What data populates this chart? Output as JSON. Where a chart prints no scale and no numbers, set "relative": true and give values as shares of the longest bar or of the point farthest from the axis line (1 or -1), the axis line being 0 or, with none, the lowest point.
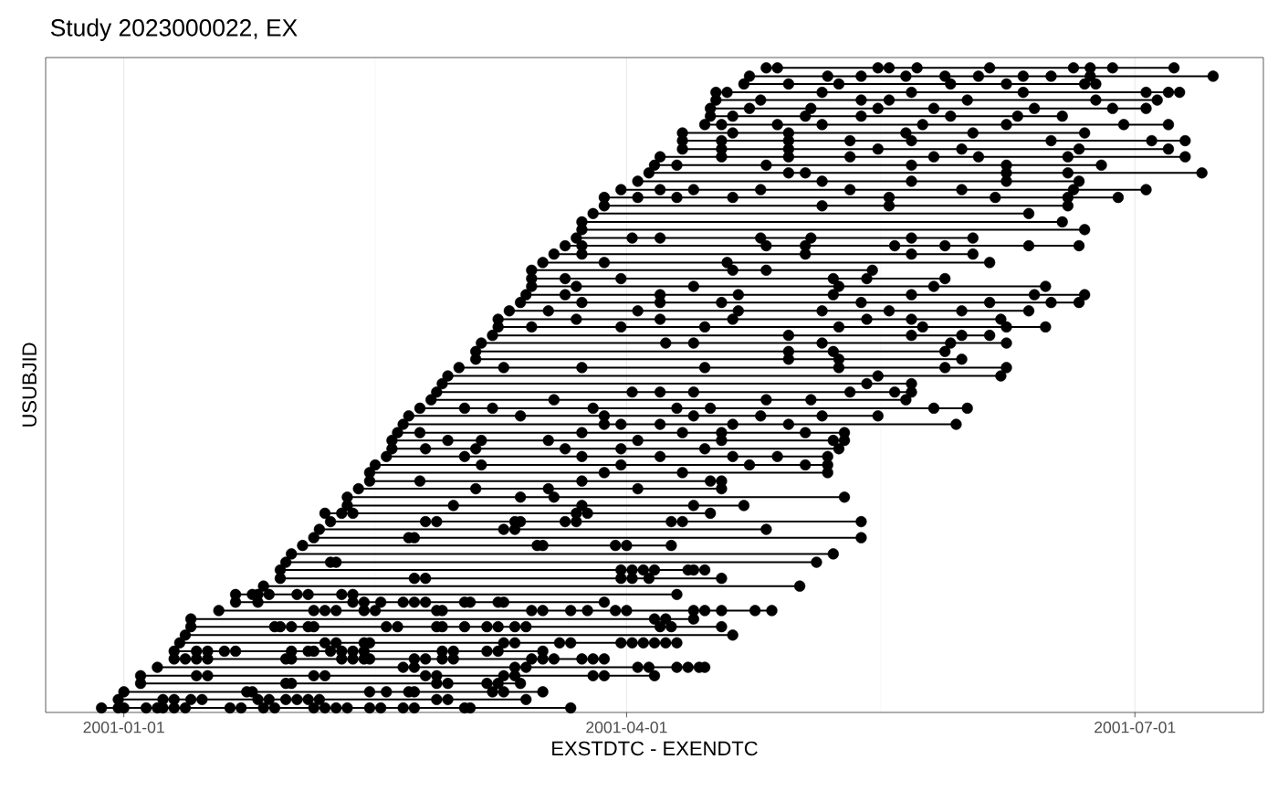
{
  "chart_data": {
    "type": "line",
    "relative": true,
    "marker": "circle",
    "title": "Study 2023000022, EX",
    "xlabel": "EXSTDTC - EXENDTC",
    "ylabel": "USUBJID",
    "tick_labels": "x",
    "grid": "x",
    "xlim": [
      "2000-12-18",
      "2001-07-24"
    ],
    "xticks": [
      {
        "value": "2001-01-01",
        "label": "2001-01-01"
      },
      {
        "value": "2001-04-01",
        "label": "2001-04-01"
      },
      {
        "value": "2001-07-01",
        "label": "2001-07-01"
      }
    ],
    "series": [
      {
        "color": "#000000",
        "x": [
          "2001-04-26",
          "2001-04-28",
          "2001-05-16",
          "2001-05-18",
          "2001-05-23",
          "2001-06-05",
          "2001-06-20",
          "2001-06-23",
          "2001-06-27",
          "2001-07-08",
          null,
          "2001-04-23",
          "2001-05-07",
          "2001-05-13",
          "2001-05-21",
          "2001-05-28",
          "2001-06-03",
          "2001-06-11",
          "2001-06-16",
          "2001-06-23",
          "2001-07-15",
          null,
          "2001-04-22",
          "2001-04-30",
          "2001-05-09",
          "2001-05-29",
          "2001-06-08",
          "2001-06-22",
          "2001-06-24",
          null,
          "2001-04-17",
          "2001-04-19",
          "2001-05-06",
          "2001-05-22",
          "2001-06-11",
          "2001-07-03",
          "2001-07-07",
          "2001-07-09",
          null,
          "2001-04-17",
          "2001-04-25",
          "2001-05-13",
          "2001-05-18",
          "2001-06-01",
          "2001-06-24",
          "2001-07-05",
          null,
          "2001-04-16",
          "2001-04-23",
          "2001-05-04",
          "2001-05-16",
          "2001-05-26",
          "2001-06-13",
          "2001-06-27",
          "2001-07-03",
          null,
          "2001-04-16",
          "2001-04-20",
          "2001-05-03",
          "2001-05-13",
          "2001-05-29",
          "2001-06-10",
          "2001-06-18",
          null,
          "2001-04-15",
          "2001-04-18",
          "2001-04-28",
          "2001-05-06",
          "2001-05-24",
          "2001-06-08",
          "2001-06-29",
          "2001-07-07",
          null,
          "2001-04-11",
          "2001-04-20",
          "2001-04-30",
          "2001-05-21",
          "2001-06-02",
          "2001-06-22",
          null,
          "2001-04-11",
          "2001-04-18",
          "2001-04-30",
          "2001-05-11",
          "2001-05-22",
          "2001-06-16",
          "2001-07-04",
          "2001-07-10",
          null,
          "2001-04-11",
          "2001-04-18",
          "2001-04-30",
          "2001-05-16",
          "2001-05-31",
          "2001-06-21",
          "2001-07-07",
          null,
          "2001-04-07",
          "2001-04-18",
          "2001-04-30",
          "2001-05-11",
          "2001-05-26",
          "2001-06-03",
          "2001-06-19",
          "2001-07-10",
          null,
          "2001-04-06",
          "2001-04-10",
          "2001-04-26",
          "2001-05-22",
          "2001-06-08",
          "2001-06-25",
          null,
          "2001-04-05",
          "2001-04-30",
          "2001-05-03",
          "2001-06-08",
          "2001-06-19",
          "2001-07-13",
          null,
          "2001-04-03",
          "2001-05-06",
          "2001-05-22",
          "2001-06-08",
          "2001-06-21",
          null,
          "2001-03-31",
          "2001-04-07",
          "2001-04-13",
          "2001-04-25",
          "2001-05-11",
          "2001-05-31",
          "2001-06-20",
          "2001-07-03",
          null,
          "2001-03-28",
          "2001-04-03",
          "2001-04-10",
          "2001-04-20",
          "2001-05-18",
          "2001-06-06",
          "2001-06-19",
          "2001-06-28",
          null,
          "2001-03-28",
          "2001-05-06",
          "2001-05-18",
          "2001-06-19",
          null,
          "2001-03-26",
          "2001-06-12",
          null,
          "2001-03-24",
          "2001-06-18",
          null,
          "2001-03-24",
          "2001-06-22",
          null,
          "2001-03-23",
          "2001-04-02",
          "2001-04-07",
          "2001-04-25",
          "2001-05-04",
          "2001-05-22",
          "2001-06-02",
          null,
          "2001-03-21",
          "2001-03-24",
          "2001-04-26",
          "2001-05-03",
          "2001-05-19",
          "2001-05-28",
          "2001-06-12",
          "2001-06-21",
          null,
          "2001-03-19",
          "2001-03-24",
          "2001-05-03",
          "2001-05-22",
          "2001-06-02",
          null,
          "2001-03-17",
          "2001-03-28",
          "2001-04-19",
          "2001-06-05",
          null,
          "2001-03-15",
          "2001-04-20",
          "2001-04-26",
          "2001-05-15",
          null,
          "2001-03-15",
          "2001-03-21",
          "2001-03-31",
          "2001-05-08",
          "2001-05-14",
          "2001-05-28",
          null,
          "2001-03-15",
          "2001-03-23",
          "2001-04-13",
          "2001-05-09",
          "2001-05-26",
          "2001-06-15",
          null,
          "2001-03-14",
          "2001-03-21",
          "2001-04-07",
          "2001-04-21",
          "2001-05-08",
          "2001-05-22",
          "2001-06-13",
          "2001-06-22",
          null,
          "2001-03-13",
          "2001-03-24",
          "2001-04-07",
          "2001-04-18",
          "2001-05-13",
          "2001-06-05",
          "2001-06-16",
          "2001-06-21",
          null,
          "2001-03-11",
          "2001-03-18",
          "2001-04-03",
          "2001-04-21",
          "2001-05-06",
          "2001-05-18",
          "2001-05-31",
          "2001-06-12",
          null,
          "2001-03-09",
          "2001-03-23",
          "2001-04-07",
          "2001-04-20",
          "2001-05-14",
          "2001-05-22",
          "2001-06-07",
          null,
          "2001-03-09",
          "2001-03-15",
          "2001-03-31",
          "2001-04-15",
          "2001-05-09",
          "2001-05-24",
          "2001-06-08",
          "2001-06-15",
          null,
          "2001-03-08",
          "2001-04-30",
          "2001-05-22",
          "2001-05-31",
          "2001-06-05",
          null,
          "2001-03-06",
          "2001-04-08",
          "2001-04-13",
          "2001-05-06",
          "2001-05-29",
          "2001-06-08",
          null,
          "2001-03-05",
          "2001-04-30",
          "2001-05-08",
          "2001-05-28",
          null,
          "2001-03-05",
          "2001-04-30",
          "2001-05-09",
          "2001-05-31",
          null,
          "2001-03-02",
          "2001-03-10",
          "2001-03-24",
          "2001-04-15",
          "2001-05-09",
          "2001-05-28",
          "2001-06-08",
          null,
          "2001-02-28",
          "2001-05-16",
          "2001-06-07",
          null,
          "2001-02-27",
          "2001-05-14",
          "2001-05-22",
          null,
          "2001-02-26",
          "2001-04-02",
          "2001-04-07",
          "2001-04-13",
          "2001-05-11",
          "2001-05-19",
          "2001-05-22",
          null,
          "2001-02-25",
          "2001-03-19",
          "2001-04-26",
          "2001-05-04",
          "2001-05-21",
          null,
          "2001-02-23",
          "2001-03-03",
          "2001-03-08",
          "2001-03-26",
          "2001-04-10",
          "2001-04-16",
          "2001-05-26",
          "2001-06-01",
          null,
          "2001-02-21",
          "2001-03-13",
          "2001-03-28",
          "2001-04-13",
          "2001-04-25",
          "2001-05-06",
          "2001-05-16",
          null,
          "2001-02-20",
          "2001-03-28",
          "2001-03-31",
          "2001-04-07",
          "2001-04-20",
          "2001-04-30",
          "2001-05-30",
          null,
          "2001-02-19",
          "2001-02-23",
          "2001-03-24",
          "2001-04-11",
          "2001-04-18",
          "2001-05-03",
          "2001-05-10",
          null,
          "2001-02-18",
          "2001-02-28",
          "2001-03-06",
          "2001-03-18",
          "2001-04-03",
          "2001-04-18",
          "2001-05-08",
          "2001-05-10",
          null,
          "2001-02-18",
          "2001-02-24",
          "2001-03-05",
          "2001-03-21",
          "2001-03-31",
          "2001-04-15",
          "2001-05-09",
          null,
          "2001-02-17",
          "2001-03-03",
          "2001-03-24",
          "2001-04-07",
          "2001-04-20",
          "2001-04-28",
          "2001-05-07",
          null,
          "2001-02-15",
          "2001-03-06",
          "2001-03-31",
          "2001-04-23",
          "2001-05-03",
          "2001-05-07",
          null,
          "2001-02-14",
          "2001-03-28",
          "2001-04-11",
          "2001-05-07",
          null,
          "2001-02-14",
          "2001-02-23",
          "2001-03-24",
          "2001-04-16",
          "2001-04-18",
          null,
          "2001-02-12",
          "2001-03-05",
          "2001-03-18",
          "2001-04-03",
          "2001-04-18",
          null,
          "2001-02-10",
          "2001-03-13",
          "2001-03-19",
          "2001-05-10",
          null,
          "2001-02-10",
          "2001-03-01",
          "2001-03-24",
          "2001-04-13",
          "2001-04-22",
          null,
          "2001-02-06",
          "2001-02-09",
          "2001-02-11",
          "2001-03-23",
          "2001-03-25",
          "2001-04-16",
          null,
          "2001-02-07",
          "2001-02-24",
          "2001-02-26",
          "2001-03-12",
          "2001-03-13",
          "2001-03-21",
          "2001-03-23",
          "2001-04-09",
          "2001-04-11",
          "2001-05-13",
          null,
          "2001-02-05",
          "2001-03-10",
          "2001-03-12",
          "2001-04-26",
          null,
          "2001-02-04",
          "2001-02-21",
          "2001-02-22",
          "2001-05-13",
          null,
          "2001-02-02",
          "2001-03-16",
          "2001-03-17",
          "2001-03-30",
          "2001-04-01",
          "2001-04-09",
          null,
          "2001-01-31",
          "2001-05-08",
          null,
          "2001-01-30",
          "2001-02-07",
          "2001-02-08",
          "2001-05-05",
          null,
          "2001-01-29",
          "2001-03-31",
          "2001-04-02",
          "2001-04-04",
          "2001-04-06",
          "2001-04-12",
          "2001-04-13",
          "2001-04-15",
          null,
          "2001-01-29",
          "2001-02-22",
          "2001-02-24",
          "2001-03-31",
          "2001-04-02",
          "2001-04-05",
          "2001-04-18",
          null,
          "2001-01-26",
          "2001-05-02",
          null,
          "2001-01-21",
          "2001-01-24",
          "2001-01-25",
          "2001-01-27",
          "2001-02-01",
          "2001-02-03",
          "2001-02-09",
          "2001-02-11",
          "2001-04-10",
          null,
          "2001-01-21",
          "2001-01-25",
          "2001-02-11",
          "2001-02-13",
          "2001-02-16",
          "2001-02-20",
          "2001-02-22",
          "2001-02-24",
          "2001-03-03",
          "2001-03-04",
          "2001-03-09",
          "2001-03-10",
          "2001-03-28",
          null,
          "2001-01-18",
          "2001-02-04",
          "2001-02-06",
          "2001-02-08",
          "2001-02-13",
          "2001-02-15",
          "2001-02-26",
          "2001-02-27",
          "2001-03-15",
          "2001-03-17",
          "2001-03-22",
          "2001-03-25",
          "2001-03-30",
          "2001-04-01",
          "2001-04-13",
          "2001-04-15",
          "2001-04-18",
          "2001-04-24",
          "2001-04-27",
          null,
          "2001-01-13",
          "2001-04-06",
          "2001-04-08",
          "2001-04-13",
          null,
          "2001-01-13",
          "2001-01-28",
          "2001-01-29",
          "2001-01-31",
          "2001-02-03",
          "2001-02-04",
          "2001-02-17",
          "2001-02-19",
          "2001-02-26",
          "2001-02-27",
          "2001-03-03",
          "2001-03-07",
          "2001-03-09",
          "2001-03-12",
          "2001-03-14",
          "2001-04-07",
          "2001-04-09",
          "2001-04-18",
          null,
          "2001-01-12",
          "2001-04-20",
          null,
          "2001-01-11",
          "2001-02-06",
          "2001-02-08",
          "2001-02-13",
          "2001-02-14",
          "2001-03-10",
          "2001-03-12",
          "2001-03-20",
          "2001-03-22",
          "2001-03-31",
          "2001-04-02",
          "2001-04-04",
          "2001-04-06",
          "2001-04-08",
          "2001-04-10",
          null,
          "2001-01-10",
          "2001-01-14",
          "2001-01-16",
          "2001-01-19",
          "2001-01-21",
          "2001-01-31",
          "2001-02-03",
          "2001-02-04",
          "2001-02-07",
          "2001-02-09",
          "2001-02-11",
          "2001-02-13",
          "2001-02-27",
          "2001-03-01",
          "2001-03-07",
          "2001-03-09",
          "2001-03-17",
          null,
          "2001-01-10",
          "2001-01-12",
          "2001-01-14",
          "2001-01-16",
          "2001-01-30",
          "2001-01-31",
          "2001-02-09",
          "2001-02-11",
          "2001-02-13",
          "2001-02-14",
          "2001-02-22",
          "2001-02-24",
          "2001-02-27",
          "2001-03-01",
          "2001-03-15",
          "2001-03-17",
          "2001-03-19",
          "2001-03-24",
          "2001-03-26",
          "2001-03-28",
          null,
          "2001-01-07",
          "2001-02-20",
          "2001-02-22",
          "2001-03-12",
          "2001-03-14",
          "2001-04-03",
          "2001-04-05",
          "2001-04-10",
          "2001-04-12",
          "2001-04-14",
          "2001-04-15",
          null,
          "2001-01-04",
          "2001-01-14",
          "2001-01-16",
          "2001-02-04",
          "2001-02-06",
          "2001-02-24",
          "2001-02-26",
          "2001-03-10",
          "2001-03-12",
          "2001-03-26",
          "2001-03-28",
          "2001-04-06",
          null,
          "2001-01-04",
          "2001-01-30",
          "2001-01-31",
          "2001-02-26",
          "2001-02-28",
          "2001-03-07",
          "2001-03-09",
          "2001-03-13",
          null,
          "2001-01-01",
          "2001-01-23",
          "2001-01-24",
          "2001-02-14",
          "2001-02-17",
          "2001-02-21",
          "2001-02-22",
          "2001-03-08",
          "2001-03-10",
          "2001-03-17",
          null,
          "2000-12-31",
          "2001-01-08",
          "2001-01-10",
          "2001-01-13",
          "2001-01-15",
          "2001-01-25",
          "2001-01-27",
          "2001-01-30",
          "2001-02-01",
          "2001-02-03",
          "2001-02-05",
          "2001-02-26",
          "2001-02-28",
          "2001-03-14",
          null,
          "2000-12-28",
          "2000-12-31",
          "2001-01-01",
          "2001-01-05",
          "2001-01-07",
          "2001-01-08",
          "2001-01-10",
          "2001-01-12",
          "2001-01-20",
          "2001-01-22",
          "2001-01-26",
          "2001-01-28",
          "2001-02-04",
          "2001-02-06",
          "2001-02-08",
          "2001-02-10",
          "2001-02-14",
          "2001-02-16",
          "2001-02-20",
          "2001-02-22",
          "2001-03-03",
          "2001-03-04",
          "2001-03-22"
        ],
        "values": [
          1,
          1,
          1,
          1,
          1,
          1,
          1,
          1,
          1,
          1,
          null,
          0.987,
          0.987,
          0.987,
          0.987,
          0.987,
          0.987,
          0.987,
          0.987,
          0.987,
          0.987,
          null,
          0.975,
          0.975,
          0.975,
          0.975,
          0.975,
          0.975,
          0.975,
          null,
          0.962,
          0.962,
          0.962,
          0.962,
          0.962,
          0.962,
          0.962,
          0.962,
          null,
          0.95,
          0.95,
          0.95,
          0.95,
          0.95,
          0.95,
          0.95,
          null,
          0.937,
          0.937,
          0.937,
          0.937,
          0.937,
          0.937,
          0.937,
          0.937,
          null,
          0.925,
          0.925,
          0.925,
          0.925,
          0.925,
          0.925,
          0.925,
          null,
          0.912,
          0.912,
          0.912,
          0.912,
          0.912,
          0.912,
          0.912,
          0.912,
          null,
          0.899,
          0.899,
          0.899,
          0.899,
          0.899,
          0.899,
          null,
          0.887,
          0.887,
          0.887,
          0.887,
          0.887,
          0.887,
          0.887,
          0.887,
          null,
          0.874,
          0.874,
          0.874,
          0.874,
          0.874,
          0.874,
          0.874,
          null,
          0.862,
          0.862,
          0.862,
          0.862,
          0.862,
          0.862,
          0.862,
          0.862,
          null,
          0.849,
          0.849,
          0.849,
          0.849,
          0.849,
          0.849,
          null,
          0.837,
          0.837,
          0.837,
          0.837,
          0.837,
          0.837,
          null,
          0.824,
          0.824,
          0.824,
          0.824,
          0.824,
          null,
          0.811,
          0.811,
          0.811,
          0.811,
          0.811,
          0.811,
          0.811,
          0.811,
          null,
          0.799,
          0.799,
          0.799,
          0.799,
          0.799,
          0.799,
          0.799,
          0.799,
          null,
          0.786,
          0.786,
          0.786,
          0.786,
          null,
          0.774,
          0.774,
          null,
          0.761,
          0.761,
          null,
          0.749,
          0.749,
          null,
          0.736,
          0.736,
          0.736,
          0.736,
          0.736,
          0.736,
          0.736,
          null,
          0.724,
          0.724,
          0.724,
          0.724,
          0.724,
          0.724,
          0.724,
          0.724,
          null,
          0.711,
          0.711,
          0.711,
          0.711,
          0.711,
          null,
          0.698,
          0.698,
          0.698,
          0.698,
          null,
          0.686,
          0.686,
          0.686,
          0.686,
          null,
          0.673,
          0.673,
          0.673,
          0.673,
          0.673,
          0.673,
          null,
          0.661,
          0.661,
          0.661,
          0.661,
          0.661,
          0.661,
          null,
          0.648,
          0.648,
          0.648,
          0.648,
          0.648,
          0.648,
          0.648,
          0.648,
          null,
          0.636,
          0.636,
          0.636,
          0.636,
          0.636,
          0.636,
          0.636,
          0.636,
          null,
          0.623,
          0.623,
          0.623,
          0.623,
          0.623,
          0.623,
          0.623,
          0.623,
          null,
          0.61,
          0.61,
          0.61,
          0.61,
          0.61,
          0.61,
          0.61,
          null,
          0.598,
          0.598,
          0.598,
          0.598,
          0.598,
          0.598,
          0.598,
          0.598,
          null,
          0.585,
          0.585,
          0.585,
          0.585,
          0.585,
          null,
          0.573,
          0.573,
          0.573,
          0.573,
          0.573,
          0.573,
          null,
          0.56,
          0.56,
          0.56,
          0.56,
          null,
          0.548,
          0.548,
          0.548,
          0.548,
          null,
          0.535,
          0.535,
          0.535,
          0.535,
          0.535,
          0.535,
          0.535,
          null,
          0.522,
          0.522,
          0.522,
          null,
          0.51,
          0.51,
          0.51,
          null,
          0.497,
          0.497,
          0.497,
          0.497,
          0.497,
          0.497,
          0.497,
          null,
          0.485,
          0.485,
          0.485,
          0.485,
          0.485,
          null,
          0.472,
          0.472,
          0.472,
          0.472,
          0.472,
          0.472,
          0.472,
          0.472,
          null,
          0.46,
          0.46,
          0.46,
          0.46,
          0.46,
          0.46,
          0.46,
          null,
          0.447,
          0.447,
          0.447,
          0.447,
          0.447,
          0.447,
          0.447,
          null,
          0.434,
          0.434,
          0.434,
          0.434,
          0.434,
          0.434,
          0.434,
          null,
          0.422,
          0.422,
          0.422,
          0.422,
          0.422,
          0.422,
          0.422,
          0.422,
          null,
          0.409,
          0.409,
          0.409,
          0.409,
          0.409,
          0.409,
          0.409,
          null,
          0.397,
          0.397,
          0.397,
          0.397,
          0.397,
          0.397,
          0.397,
          null,
          0.384,
          0.384,
          0.384,
          0.384,
          0.384,
          0.384,
          null,
          0.372,
          0.372,
          0.372,
          0.372,
          null,
          0.359,
          0.359,
          0.359,
          0.359,
          0.359,
          null,
          0.347,
          0.347,
          0.347,
          0.347,
          0.347,
          null,
          0.334,
          0.334,
          0.334,
          0.334,
          null,
          0.321,
          0.321,
          0.321,
          0.321,
          0.321,
          null,
          0.309,
          0.309,
          0.309,
          0.309,
          0.309,
          0.309,
          null,
          0.296,
          0.296,
          0.296,
          0.296,
          0.296,
          0.296,
          0.296,
          0.296,
          0.296,
          0.296,
          null,
          0.284,
          0.284,
          0.284,
          0.284,
          null,
          0.271,
          0.271,
          0.271,
          0.271,
          null,
          0.259,
          0.259,
          0.259,
          0.259,
          0.259,
          0.259,
          null,
          0.246,
          0.246,
          null,
          0.233,
          0.233,
          0.233,
          0.233,
          null,
          0.221,
          0.221,
          0.221,
          0.221,
          0.221,
          0.221,
          0.221,
          0.221,
          null,
          0.208,
          0.208,
          0.208,
          0.208,
          0.208,
          0.208,
          0.208,
          null,
          0.196,
          0.196,
          null,
          0.183,
          0.183,
          0.183,
          0.183,
          0.183,
          0.183,
          0.183,
          0.183,
          0.183,
          null,
          0.171,
          0.171,
          0.171,
          0.171,
          0.171,
          0.171,
          0.171,
          0.171,
          0.171,
          0.171,
          0.171,
          0.171,
          0.171,
          null,
          0.158,
          0.158,
          0.158,
          0.158,
          0.158,
          0.158,
          0.158,
          0.158,
          0.158,
          0.158,
          0.158,
          0.158,
          0.158,
          0.158,
          0.158,
          0.158,
          0.158,
          0.158,
          0.158,
          null,
          0.145,
          0.145,
          0.145,
          0.145,
          null,
          0.133,
          0.133,
          0.133,
          0.133,
          0.133,
          0.133,
          0.133,
          0.133,
          0.133,
          0.133,
          0.133,
          0.133,
          0.133,
          0.133,
          0.133,
          0.133,
          0.133,
          0.133,
          null,
          0.12,
          0.12,
          null,
          0.108,
          0.108,
          0.108,
          0.108,
          0.108,
          0.108,
          0.108,
          0.108,
          0.108,
          0.108,
          0.108,
          0.108,
          0.108,
          0.108,
          0.108,
          null,
          0.095,
          0.095,
          0.095,
          0.095,
          0.095,
          0.095,
          0.095,
          0.095,
          0.095,
          0.095,
          0.095,
          0.095,
          0.095,
          0.095,
          0.095,
          0.095,
          0.095,
          null,
          0.083,
          0.083,
          0.083,
          0.083,
          0.083,
          0.083,
          0.083,
          0.083,
          0.083,
          0.083,
          0.083,
          0.083,
          0.083,
          0.083,
          0.083,
          0.083,
          0.083,
          0.083,
          0.083,
          0.083,
          null,
          0.07,
          0.07,
          0.07,
          0.07,
          0.07,
          0.07,
          0.07,
          0.07,
          0.07,
          0.07,
          0.07,
          null,
          0.057,
          0.057,
          0.057,
          0.057,
          0.057,
          0.057,
          0.057,
          0.057,
          0.057,
          0.057,
          0.057,
          0.057,
          null,
          0.045,
          0.045,
          0.045,
          0.045,
          0.045,
          0.045,
          0.045,
          0.045,
          null,
          0.032,
          0.032,
          0.032,
          0.032,
          0.032,
          0.032,
          0.032,
          0.032,
          0.032,
          0.032,
          null,
          0.02,
          0.02,
          0.02,
          0.02,
          0.02,
          0.02,
          0.02,
          0.02,
          0.02,
          0.02,
          0.02,
          0.02,
          0.02,
          0.02,
          null,
          0.007,
          0.007,
          0.007,
          0.007,
          0.007,
          0.007,
          0.007,
          0.007,
          0.007,
          0.007,
          0.007,
          0.007,
          0.007,
          0.007,
          0.007,
          0.007,
          0.007,
          0.007,
          0.007,
          0.007,
          0.007,
          0.007,
          0.007
        ]
      }
    ]
  }
}
